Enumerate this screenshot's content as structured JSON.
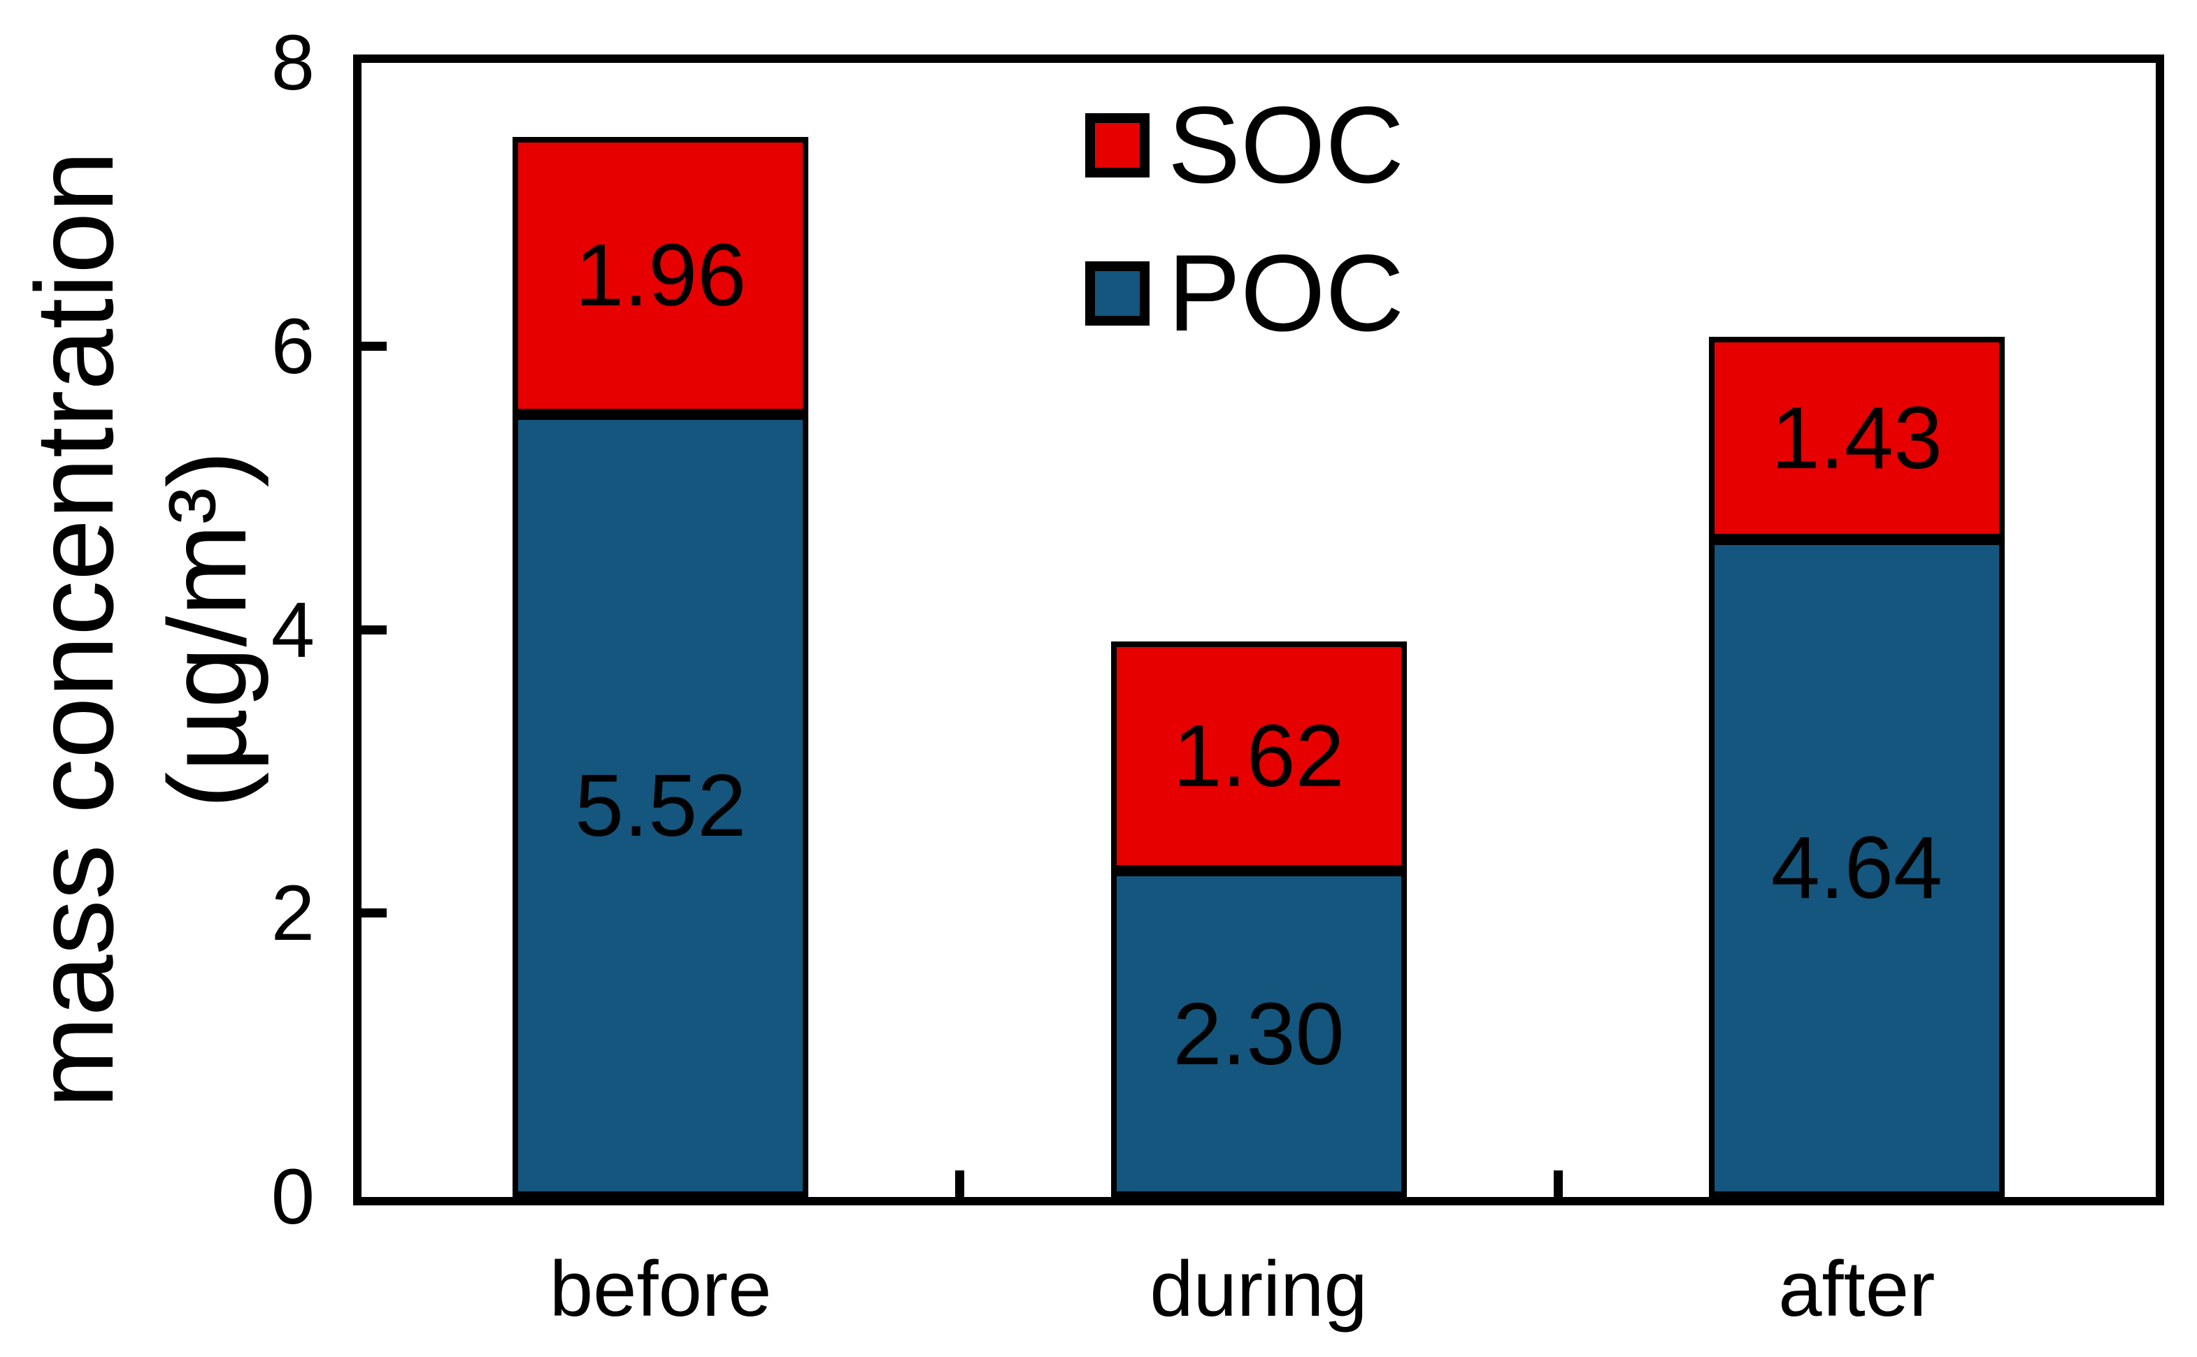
{
  "figure": {
    "background": "#ffffff"
  },
  "chart_data": {
    "type": "bar",
    "stacked": true,
    "title": "",
    "categories": [
      "before",
      "during",
      "after"
    ],
    "series": [
      {
        "name": "POC",
        "color": "#14567D",
        "values": [
          5.52,
          2.3,
          4.64
        ]
      },
      {
        "name": "SOC",
        "color": "#E60000",
        "values": [
          1.96,
          1.62,
          1.43
        ]
      }
    ],
    "totals": [
      7.48,
      3.92,
      6.07
    ],
    "value_label_color": "#000000",
    "ylabel_line1": "mass concentration",
    "ylabel_line2": "(µg/m³)",
    "xlabel": "",
    "ylim": [
      0,
      8
    ],
    "yticks": [
      0,
      2,
      4,
      6,
      8
    ],
    "grid": false,
    "axis_color": "#000000",
    "bar_border_color": "#000000",
    "legend_position": "top-center-inside",
    "legend": [
      {
        "label": "SOC",
        "color": "#E60000"
      },
      {
        "label": "POC",
        "color": "#14567D"
      }
    ]
  }
}
